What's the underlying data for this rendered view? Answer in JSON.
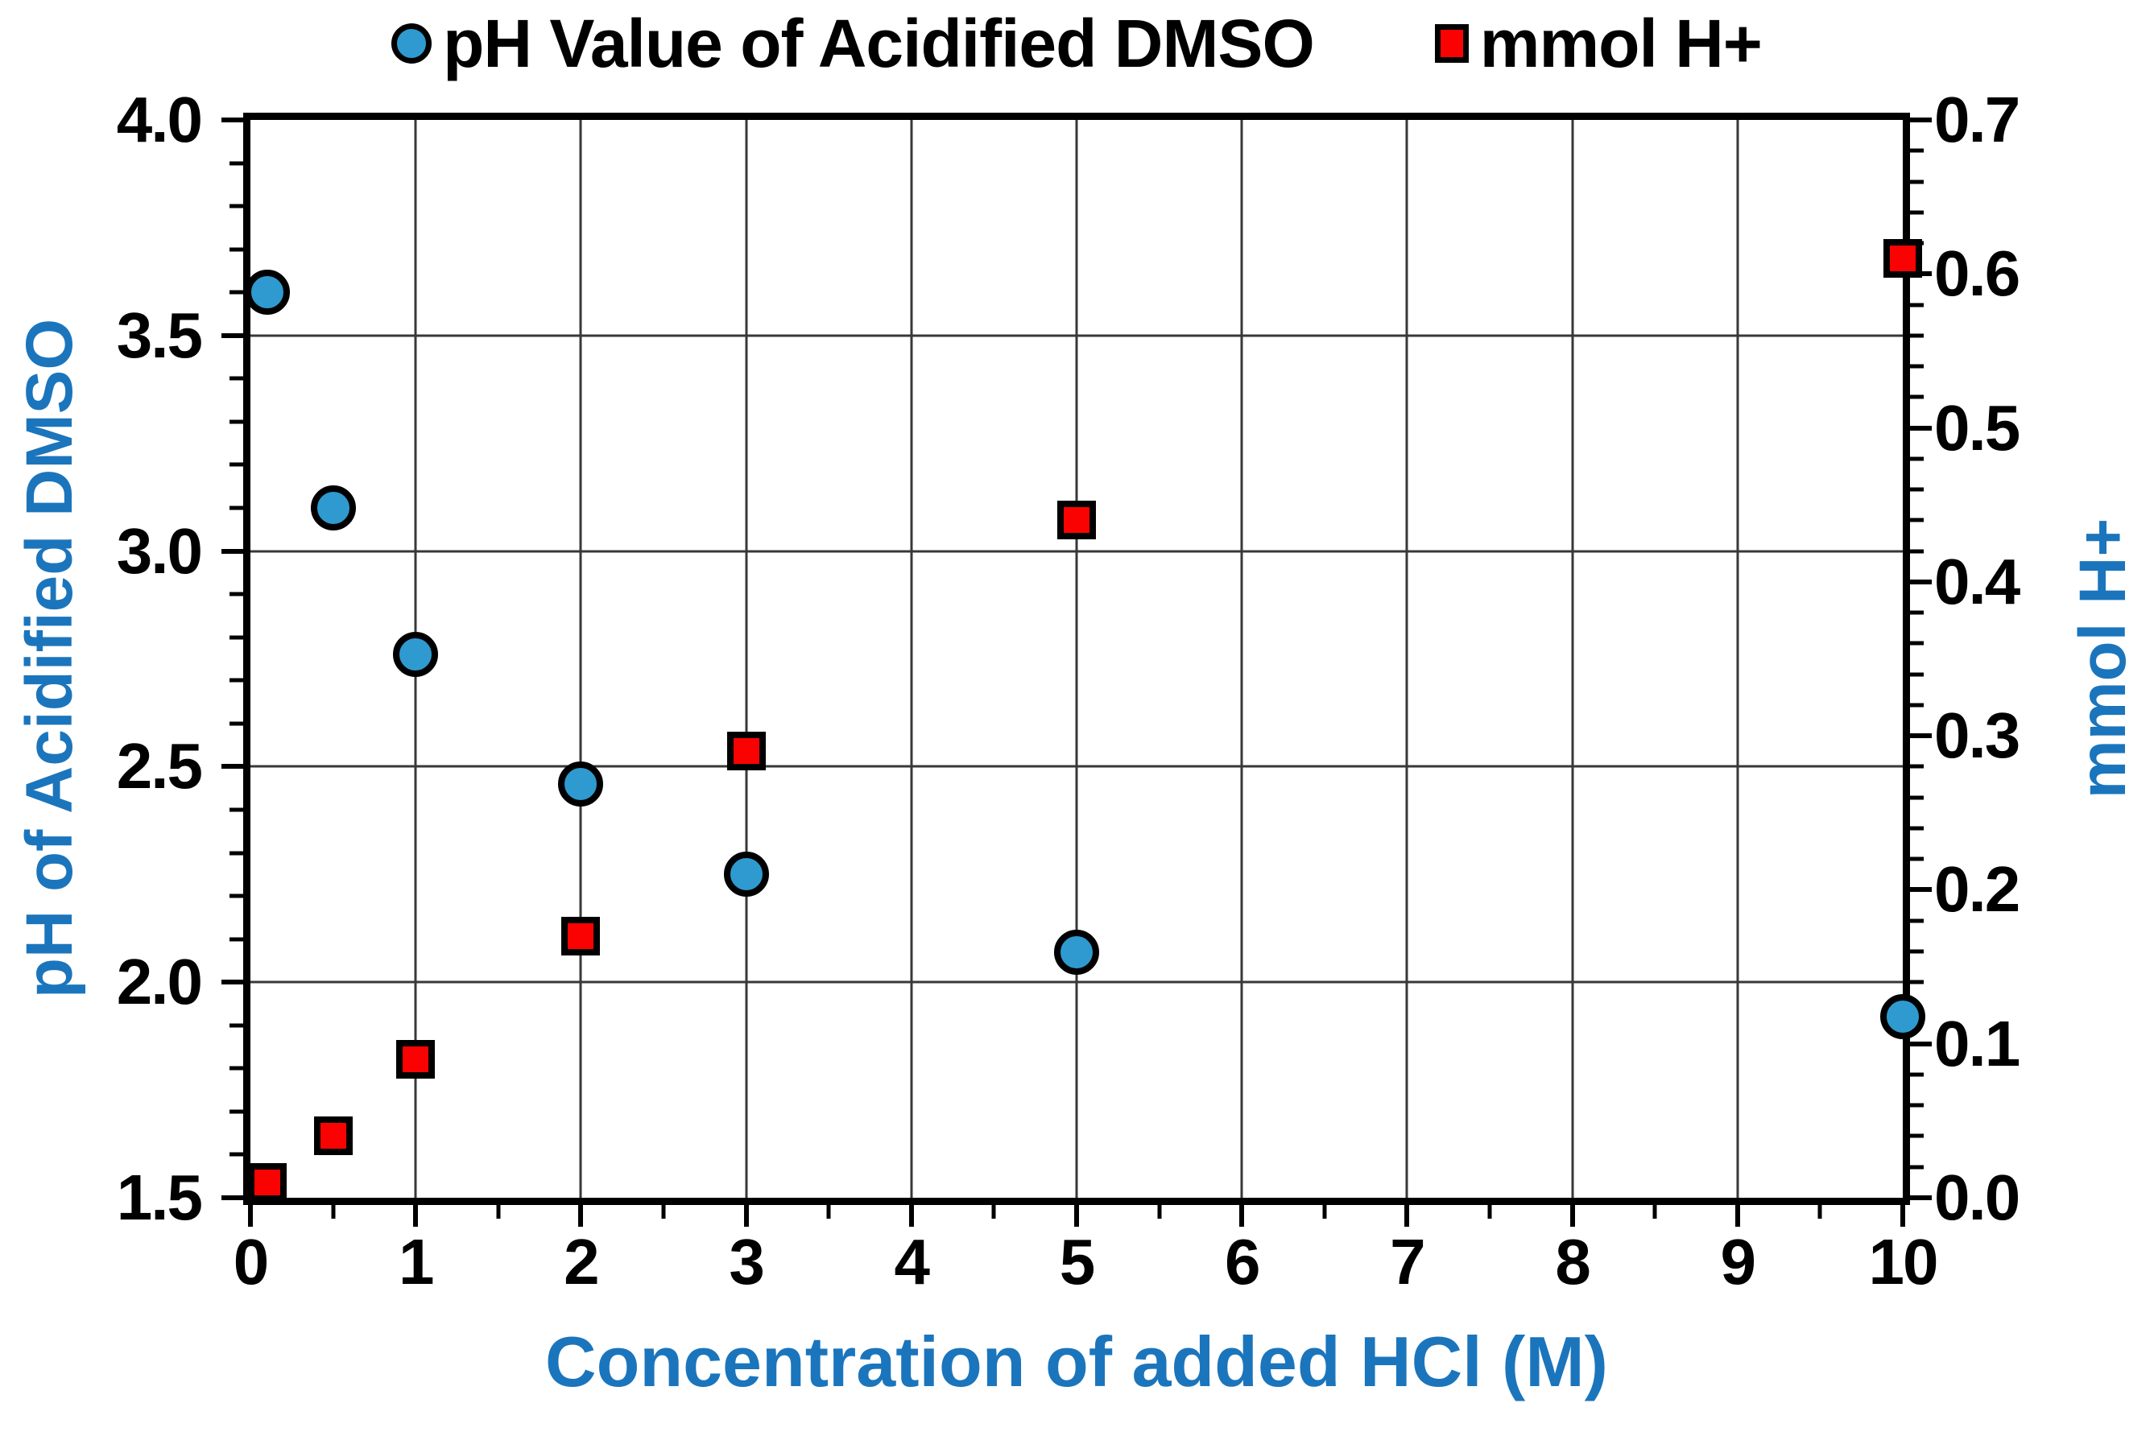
{
  "colors": {
    "ph_marker": "#2E9AD0",
    "mmol_marker": "#FB0202",
    "marker_outline": "#000000",
    "axis_title_blue": "#1B75BC",
    "tick_label_black": "#000000",
    "gridline": "#383838",
    "plot_border": "#000000",
    "background": "#ffffff"
  },
  "legend": {
    "items": [
      {
        "label": "pH Value of Acidified DMSO",
        "marker": "circle",
        "color": "#2E9AD0"
      },
      {
        "label": "mmol H+",
        "marker": "square",
        "color": "#FB0202"
      }
    ]
  },
  "axes": {
    "x": {
      "title": "Concentration of added HCl (M)",
      "min": 0,
      "max": 10,
      "major_tick_values": [
        0,
        1,
        2,
        3,
        4,
        5,
        6,
        7,
        8,
        9,
        10
      ],
      "tick_labels": [
        "0",
        "1",
        "2",
        "3",
        "4",
        "5",
        "6",
        "7",
        "8",
        "9",
        "10"
      ],
      "minor_step": 0.5
    },
    "y_left": {
      "title": "pH of Acidified DMSO",
      "min": 1.5,
      "max": 4.0,
      "major_tick_values": [
        4.0,
        3.5,
        3.0,
        2.5,
        2.0,
        1.5
      ],
      "tick_labels": [
        "4.0",
        "3.5",
        "3.0",
        "2.5",
        "2.0",
        "1.5"
      ],
      "minor_step": 0.1
    },
    "y_right": {
      "title": "mmol H+",
      "min": 0.0,
      "max": 0.7,
      "major_tick_values": [
        0.7,
        0.6,
        0.5,
        0.4,
        0.3,
        0.2,
        0.1,
        0.0
      ],
      "tick_labels": [
        "0.7",
        "0.6",
        "0.5",
        "0.4",
        "0.3",
        "0.2",
        "0.1",
        "0.0"
      ],
      "minor_step": 0.02
    }
  },
  "gridlines": {
    "vertical_x_values": [
      1,
      2,
      3,
      4,
      5,
      6,
      7,
      8,
      9
    ],
    "horizontal_ph_values": [
      3.5,
      3.0,
      2.5,
      2.0
    ]
  },
  "chart_data": {
    "type": "scatter",
    "x": [
      0.1,
      0.5,
      1,
      2,
      3,
      5,
      10
    ],
    "xlabel": "Concentration of added HCl (M)",
    "xlim": [
      0,
      10
    ],
    "grid": true,
    "legend_position": "top-center",
    "series": [
      {
        "name": "pH Value of Acidified DMSO",
        "axis": "left",
        "ylabel": "pH of Acidified DMSO",
        "ylim": [
          1.5,
          4.0
        ],
        "marker": "circle",
        "color": "#2E9AD0",
        "values": [
          3.6,
          3.1,
          2.76,
          2.46,
          2.25,
          2.07,
          1.92
        ]
      },
      {
        "name": "mmol H+",
        "axis": "right",
        "ylabel": "mmol H+",
        "ylim": [
          0.0,
          0.7
        ],
        "marker": "square",
        "color": "#FB0202",
        "values": [
          0.01,
          0.04,
          0.09,
          0.17,
          0.29,
          0.44,
          0.61
        ]
      }
    ]
  }
}
